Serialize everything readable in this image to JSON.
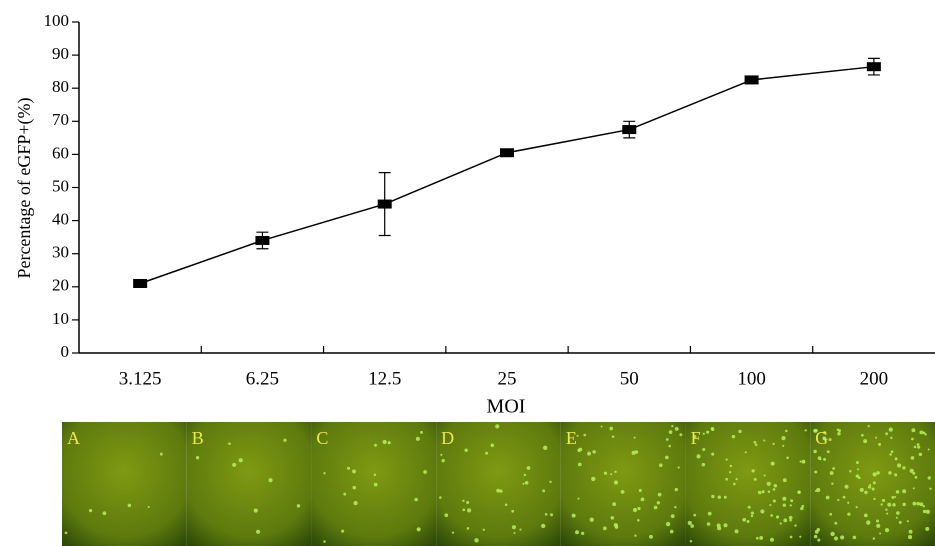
{
  "chart_data": {
    "type": "line",
    "y_label": "Percentage of eGFP+(%)",
    "x_label": "MOI",
    "categories": [
      "3.125",
      "6.25",
      "12.5",
      "25",
      "50",
      "100",
      "200"
    ],
    "values": [
      21,
      34,
      45,
      60.5,
      67.5,
      82.5,
      86.5
    ],
    "errors": [
      0.5,
      2.5,
      9.5,
      0.5,
      2.5,
      0.5,
      2.5
    ],
    "color": "#000000",
    "ylim": [
      0,
      100
    ],
    "yticks": [
      0,
      10,
      20,
      30,
      40,
      50,
      60,
      70,
      80,
      90,
      100
    ]
  },
  "panels": [
    "A",
    "B",
    "C",
    "D",
    "E",
    "F",
    "G"
  ]
}
